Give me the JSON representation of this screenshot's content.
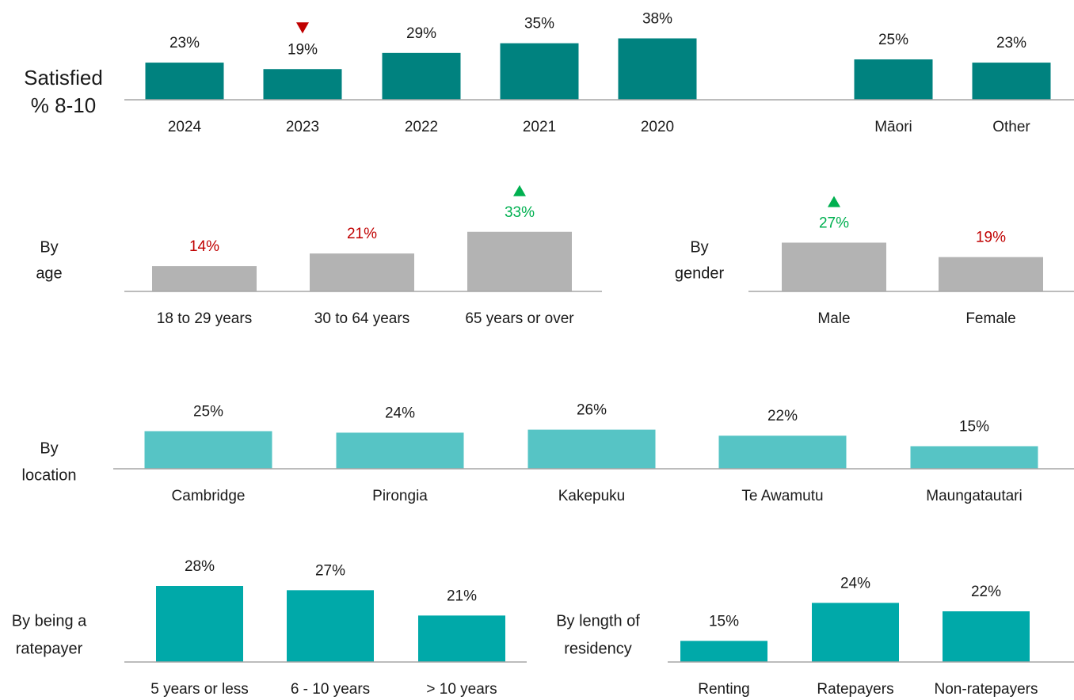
{
  "chart_data": [
    {
      "type": "bar",
      "title_lines": [
        "Satisfied",
        "% 8-10"
      ],
      "categories": [
        "2024",
        "2023",
        "2022",
        "2021",
        "2020"
      ],
      "values": [
        23,
        19,
        29,
        35,
        38
      ],
      "value_labels": [
        "23%",
        "19%",
        "29%",
        "35%",
        "38%"
      ],
      "markers": [
        null,
        "down",
        null,
        null,
        null
      ],
      "label_colors": [
        "#1a1a1a",
        "#1a1a1a",
        "#1a1a1a",
        "#1a1a1a",
        "#1a1a1a"
      ],
      "color": "#00827f",
      "ylim": [
        0,
        50
      ]
    },
    {
      "type": "bar",
      "categories": [
        "Māori",
        "Other"
      ],
      "values": [
        25,
        23
      ],
      "value_labels": [
        "25%",
        "23%"
      ],
      "markers": [
        null,
        null
      ],
      "label_colors": [
        "#1a1a1a",
        "#1a1a1a"
      ],
      "color": "#00827f",
      "ylim": [
        0,
        50
      ]
    },
    {
      "type": "bar",
      "title_lines": [
        "By",
        "age"
      ],
      "categories": [
        "18 to 29 years",
        "30 to 64 years",
        "65 years or over"
      ],
      "values": [
        14,
        21,
        33
      ],
      "value_labels": [
        "14%",
        "21%",
        "33%"
      ],
      "markers": [
        null,
        null,
        "up"
      ],
      "label_colors": [
        "#c00000",
        "#c00000",
        "#00b050"
      ],
      "color": "#b3b3b3",
      "ylim": [
        0,
        50
      ]
    },
    {
      "type": "bar",
      "title_lines": [
        "By",
        "gender"
      ],
      "categories": [
        "Male",
        "Female"
      ],
      "values": [
        27,
        19
      ],
      "value_labels": [
        "27%",
        "19%"
      ],
      "markers": [
        "up",
        null
      ],
      "label_colors": [
        "#00b050",
        "#c00000"
      ],
      "color": "#b3b3b3",
      "ylim": [
        0,
        50
      ]
    },
    {
      "type": "bar",
      "title_lines": [
        "By",
        "location"
      ],
      "categories": [
        "Cambridge",
        "Pirongia",
        "Kakepuku",
        "Te Awamutu",
        "Maungatautari"
      ],
      "values": [
        25,
        24,
        26,
        22,
        15
      ],
      "value_labels": [
        "25%",
        "24%",
        "26%",
        "22%",
        "15%"
      ],
      "markers": [
        null,
        null,
        null,
        null,
        null
      ],
      "label_colors": [
        "#1a1a1a",
        "#1a1a1a",
        "#1a1a1a",
        "#1a1a1a",
        "#1a1a1a"
      ],
      "color": "#56c4c5",
      "ylim": [
        0,
        50
      ]
    },
    {
      "type": "bar",
      "title_lines": [
        "By being a",
        "ratepayer"
      ],
      "categories": [
        "5 years or less",
        "6 - 10 years",
        "> 10 years"
      ],
      "values": [
        28,
        27,
        21
      ],
      "value_labels": [
        "28%",
        "27%",
        "21%"
      ],
      "markers": [
        null,
        null,
        null
      ],
      "label_colors": [
        "#1a1a1a",
        "#1a1a1a",
        "#1a1a1a"
      ],
      "color": "#00a9a9",
      "ylim": [
        10,
        40
      ]
    },
    {
      "type": "bar",
      "title_lines": [
        "By length of",
        "residency"
      ],
      "categories": [
        "Renting",
        "Ratepayers",
        "Non-ratepayers"
      ],
      "values": [
        15,
        24,
        22
      ],
      "value_labels": [
        "15%",
        "24%",
        "22%"
      ],
      "markers": [
        null,
        null,
        null
      ],
      "label_colors": [
        "#1a1a1a",
        "#1a1a1a",
        "#1a1a1a"
      ],
      "color": "#00a9a9",
      "ylim": [
        10,
        40
      ]
    }
  ]
}
